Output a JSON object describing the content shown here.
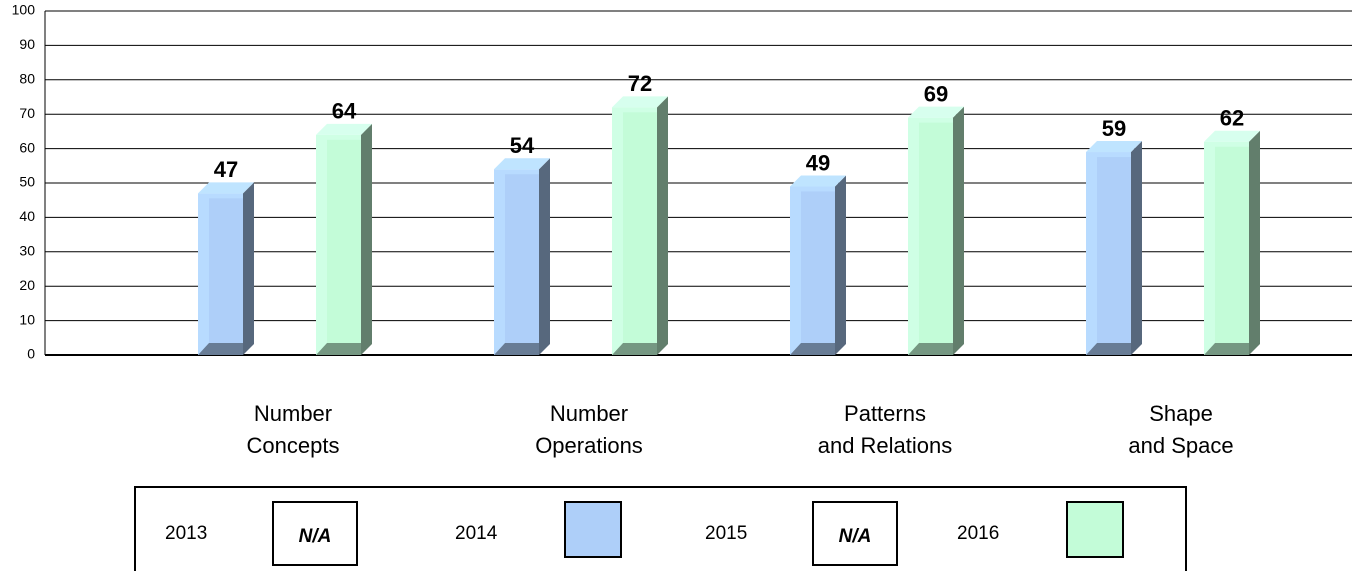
{
  "chart_data": {
    "type": "bar",
    "categories": [
      "Number\nConcepts",
      "Number\nOperations",
      "Patterns\nand Relations",
      "Shape\nand Space"
    ],
    "series": [
      {
        "name": "2013",
        "color": null,
        "values": [
          null,
          null,
          null,
          null
        ],
        "swatch_label": "N/A"
      },
      {
        "name": "2014",
        "color": "#aecff9",
        "values": [
          47,
          54,
          49,
          59
        ]
      },
      {
        "name": "2015",
        "color": null,
        "values": [
          null,
          null,
          null,
          null
        ],
        "swatch_label": "N/A"
      },
      {
        "name": "2016",
        "color": "#c3fcd8",
        "values": [
          64,
          72,
          69,
          62
        ]
      }
    ],
    "ylim": [
      0,
      100
    ],
    "yticks": [
      0,
      10,
      20,
      30,
      40,
      50,
      60,
      70,
      80,
      90,
      100
    ],
    "grid": true
  }
}
